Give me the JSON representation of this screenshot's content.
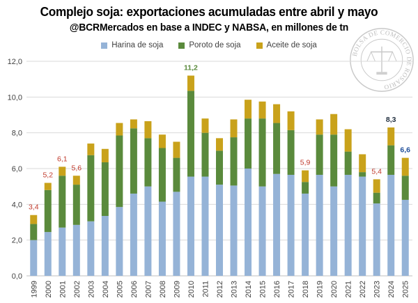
{
  "title": "Complejo soja: exportaciones acumuladas entre abril y mayo",
  "subtitle": "@BCRMercados en base a INDEC y NABSA, en millones de tn",
  "seal_text": "BOLSA DE COMERCIO DE ROSARIO",
  "colors": {
    "harina": "#95B3D7",
    "poroto": "#5A8A3C",
    "aceite": "#C9A21B",
    "label_red": "#C0392B",
    "label_green": "#5A8A3C",
    "label_dark": "#1F2D3D",
    "label_blue": "#1F4E9A",
    "grid": "#D9D9D9"
  },
  "chart_data": {
    "type": "bar",
    "stacked": true,
    "title": "Complejo soja: exportaciones acumuladas entre abril y mayo",
    "ylim": [
      0,
      12
    ],
    "yticks": [
      "0,0",
      "2,0",
      "4,0",
      "6,0",
      "8,0",
      "10,0",
      "12,0"
    ],
    "ytick_values": [
      0,
      2,
      4,
      6,
      8,
      10,
      12
    ],
    "grid": true,
    "legend_position": "top",
    "categories": [
      "1999",
      "2000",
      "2001",
      "2002",
      "2003",
      "2004",
      "2005",
      "2006",
      "2007",
      "2008",
      "2009",
      "2010",
      "2011",
      "2012",
      "2013",
      "2014",
      "2015",
      "2016",
      "2017",
      "2018",
      "2019",
      "2020",
      "2021",
      "2022",
      "2023",
      "2024",
      "2025"
    ],
    "series": [
      {
        "name": "Harina de soja",
        "color_key": "harina",
        "values": [
          2.0,
          2.45,
          2.7,
          2.85,
          3.05,
          3.35,
          3.85,
          4.6,
          5.0,
          4.15,
          4.7,
          5.55,
          5.55,
          5.1,
          5.05,
          6.0,
          5.0,
          5.7,
          5.65,
          4.6,
          5.65,
          5.0,
          5.65,
          5.55,
          4.05,
          5.65,
          4.25
        ]
      },
      {
        "name": "Poroto de soja",
        "color_key": "poroto",
        "values": [
          0.9,
          2.35,
          2.9,
          2.25,
          3.7,
          3.0,
          4.0,
          3.65,
          2.7,
          3.0,
          1.9,
          4.8,
          2.45,
          1.9,
          2.7,
          2.8,
          3.8,
          2.85,
          2.5,
          0.65,
          2.25,
          2.9,
          1.3,
          0.25,
          0.6,
          1.65,
          1.35
        ]
      },
      {
        "name": "Aceite de soja",
        "color_key": "aceite",
        "values": [
          0.5,
          0.4,
          0.5,
          0.5,
          0.65,
          0.75,
          0.7,
          0.5,
          0.95,
          0.75,
          0.9,
          0.85,
          0.8,
          0.7,
          1.0,
          1.05,
          0.95,
          1.05,
          1.05,
          0.65,
          0.85,
          1.15,
          1.25,
          1.0,
          0.75,
          1.0,
          1.0
        ]
      }
    ],
    "annotations": [
      {
        "category": "1999",
        "text": "3,4",
        "color_key": "label_red"
      },
      {
        "category": "2000",
        "text": "5,2",
        "color_key": "label_red"
      },
      {
        "category": "2001",
        "text": "6,1",
        "color_key": "label_red"
      },
      {
        "category": "2002",
        "text": "5,6",
        "color_key": "label_red"
      },
      {
        "category": "2010",
        "text": "11,2",
        "color_key": "label_green"
      },
      {
        "category": "2018",
        "text": "5,9",
        "color_key": "label_red"
      },
      {
        "category": "2023",
        "text": "5,4",
        "color_key": "label_red"
      },
      {
        "category": "2024",
        "text": "8,3",
        "color_key": "label_dark"
      },
      {
        "category": "2025",
        "text": "6,6",
        "color_key": "label_blue"
      }
    ]
  }
}
